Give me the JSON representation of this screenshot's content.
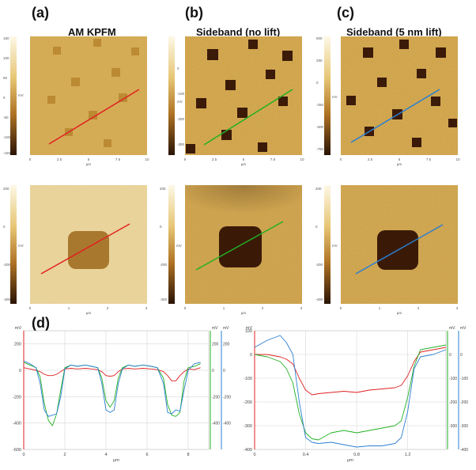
{
  "figure": {
    "panel_letters": [
      "(a)",
      "(b)",
      "(c)",
      "(d)"
    ],
    "titles": [
      "AM KPFM",
      "Sideband (no lift)",
      "Sideband (5 nm lift)"
    ],
    "colors": {
      "map_light": "#f3dd9c",
      "map_mid": "#c98f2e",
      "map_dark": "#3a1d08",
      "line_red": "#e02020",
      "line_green": "#22b022",
      "line_blue": "#2a7fd0"
    }
  },
  "maps_top": [
    {
      "scale_ticks": [
        "150",
        "100",
        "50",
        "0",
        "-50",
        "-100",
        "-150"
      ],
      "unit": "mV",
      "x_ticks": [
        "0",
        "2.5",
        "5",
        "7.5",
        "10"
      ],
      "x_unit": "µm"
    },
    {
      "scale_ticks": [
        "",
        "0",
        "-100",
        "-200",
        "-300"
      ],
      "unit": "mV",
      "x_ticks": [
        "0",
        "2.5",
        "5",
        "7.5",
        "10"
      ],
      "x_unit": "µm"
    },
    {
      "scale_ticks": [
        "500",
        "250",
        "0",
        "-250",
        "-500",
        "-750"
      ],
      "unit": "mV",
      "x_ticks": [
        "0",
        "2.5",
        "5",
        "7.5",
        "10"
      ],
      "x_unit": "µm"
    }
  ],
  "maps_bottom": [
    {
      "scale_ticks": [
        "200",
        "0",
        "-200",
        "-400"
      ],
      "unit": "mV",
      "x_ticks": [
        "0",
        "1",
        "2",
        "3"
      ],
      "x_unit": "µm"
    },
    {
      "scale_ticks": [
        "200",
        "0",
        "-200",
        "-400"
      ],
      "unit": "mV",
      "x_ticks": [
        "0",
        "1",
        "2",
        "3"
      ],
      "x_unit": "µm"
    },
    {
      "scale_ticks": [
        "200",
        "0",
        "-200",
        "-400"
      ],
      "unit": "mV",
      "x_ticks": [
        "0",
        "1",
        "2",
        "3"
      ],
      "x_unit": "µm"
    }
  ],
  "chart_data": [
    {
      "type": "line",
      "title": "",
      "xlabel": "µm",
      "ylabel": "mV",
      "xlim": [
        0,
        9
      ],
      "ylim": [
        -600,
        300
      ],
      "x_ticks": [
        0,
        2,
        4,
        6,
        8
      ],
      "y_ticks": [
        200,
        0,
        -200,
        -400,
        -600
      ],
      "right_axes": [
        {
          "color": "#22b022",
          "label": "mV",
          "ticks": [
            200,
            0,
            -200,
            -400
          ]
        },
        {
          "color": "#2a7fd0",
          "label": "mV",
          "ticks": [
            200,
            0,
            -200,
            -400
          ]
        }
      ],
      "grid": true,
      "x": [
        0,
        0.3,
        0.6,
        0.8,
        1.0,
        1.2,
        1.4,
        1.6,
        1.8,
        2.0,
        2.3,
        2.6,
        3.0,
        3.3,
        3.6,
        3.8,
        4.0,
        4.2,
        4.4,
        4.6,
        4.8,
        5.1,
        5.4,
        5.8,
        6.2,
        6.5,
        6.8,
        7.0,
        7.2,
        7.4,
        7.6,
        7.8,
        8.0,
        8.3,
        8.6
      ],
      "series": [
        {
          "color": "#e02020",
          "values": [
            20,
            10,
            0,
            -10,
            -30,
            -40,
            -40,
            -30,
            -10,
            10,
            15,
            10,
            15,
            10,
            5,
            -10,
            -40,
            -45,
            -40,
            -10,
            10,
            15,
            10,
            15,
            10,
            5,
            -10,
            -40,
            -80,
            -80,
            -40,
            -10,
            10,
            5,
            20
          ]
        },
        {
          "color": "#22b022",
          "values": [
            60,
            40,
            20,
            -50,
            -250,
            -380,
            -420,
            -330,
            -150,
            20,
            40,
            30,
            40,
            30,
            20,
            -60,
            -230,
            -280,
            -230,
            -60,
            20,
            40,
            30,
            40,
            30,
            20,
            -60,
            -260,
            -340,
            -350,
            -320,
            -80,
            20,
            30,
            50
          ]
        },
        {
          "color": "#2a7fd0",
          "values": [
            70,
            50,
            20,
            -100,
            -300,
            -350,
            -340,
            -330,
            -200,
            10,
            40,
            30,
            40,
            30,
            20,
            -100,
            -300,
            -320,
            -300,
            -100,
            10,
            40,
            30,
            40,
            30,
            20,
            -100,
            -320,
            -330,
            -300,
            -310,
            -150,
            0,
            50,
            60
          ]
        }
      ]
    },
    {
      "type": "line",
      "title": "",
      "xlabel": "µm",
      "ylabel": "mV",
      "xlim": [
        0,
        1.5
      ],
      "ylim": [
        -400,
        100
      ],
      "x_ticks": [
        0,
        0.4,
        0.8,
        1.2
      ],
      "y_ticks": [
        100,
        0,
        -100,
        -200,
        -300,
        -400
      ],
      "right_axes": [
        {
          "color": "#22b022",
          "label": "mV",
          "ticks": [
            0,
            -100,
            -200,
            -300
          ]
        },
        {
          "color": "#2a7fd0",
          "label": "mV",
          "ticks": [
            0,
            -100,
            -200,
            -300,
            -400
          ]
        }
      ],
      "grid": true,
      "x": [
        0,
        0.1,
        0.2,
        0.25,
        0.3,
        0.35,
        0.4,
        0.45,
        0.5,
        0.6,
        0.7,
        0.8,
        0.9,
        1.0,
        1.1,
        1.15,
        1.2,
        1.25,
        1.3,
        1.4,
        1.5
      ],
      "series": [
        {
          "color": "#e02020",
          "values": [
            0,
            0,
            -10,
            -20,
            -40,
            -100,
            -150,
            -170,
            -165,
            -160,
            -155,
            -160,
            -150,
            -145,
            -140,
            -130,
            -90,
            -30,
            10,
            20,
            30
          ]
        },
        {
          "color": "#22b022",
          "values": [
            0,
            -10,
            -30,
            -60,
            -120,
            -250,
            -330,
            -355,
            -360,
            -330,
            -320,
            -330,
            -320,
            -310,
            -300,
            -280,
            -180,
            -50,
            20,
            30,
            40
          ]
        },
        {
          "color": "#2a7fd0",
          "values": [
            30,
            60,
            80,
            50,
            0,
            -200,
            -350,
            -370,
            -375,
            -370,
            -380,
            -390,
            -385,
            -385,
            -375,
            -350,
            -240,
            -60,
            -10,
            0,
            20
          ]
        }
      ]
    }
  ]
}
